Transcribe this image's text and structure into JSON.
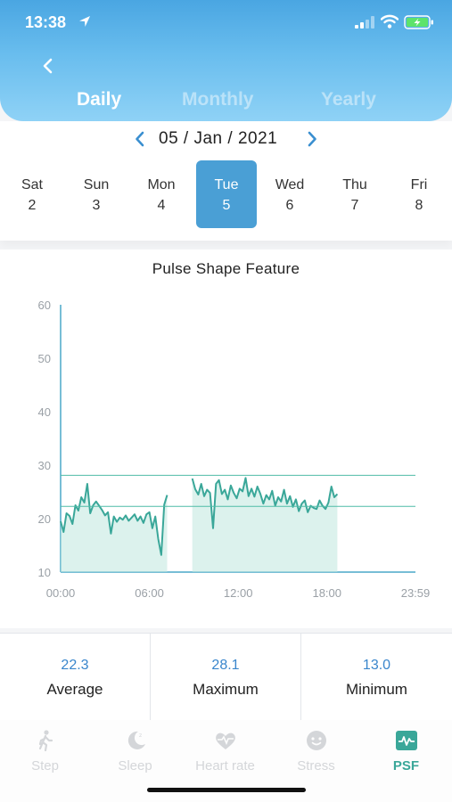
{
  "status_bar": {
    "time": "13:38"
  },
  "tabs": [
    {
      "label": "Daily",
      "active": true
    },
    {
      "label": "Monthly",
      "active": false
    },
    {
      "label": "Yearly",
      "active": false
    }
  ],
  "date_nav": {
    "date": "05 / Jan / 2021"
  },
  "days": [
    {
      "name": "Sat",
      "num": "2",
      "selected": false
    },
    {
      "name": "Sun",
      "num": "3",
      "selected": false
    },
    {
      "name": "Mon",
      "num": "4",
      "selected": false
    },
    {
      "name": "Tue",
      "num": "5",
      "selected": true
    },
    {
      "name": "Wed",
      "num": "6",
      "selected": false
    },
    {
      "name": "Thu",
      "num": "7",
      "selected": false
    },
    {
      "name": "Fri",
      "num": "8",
      "selected": false
    }
  ],
  "chart_data": {
    "type": "area",
    "title": "Pulse Shape Feature",
    "xlabel": "",
    "ylabel": "",
    "x_ticks": [
      "00:00",
      "06:00",
      "12:00",
      "18:00",
      "23:59"
    ],
    "xlim_hours": [
      0,
      23.98
    ],
    "y_ticks": [
      60,
      50,
      40,
      30,
      20,
      10
    ],
    "ylim": [
      10,
      60
    ],
    "reference_lines": [
      28.1,
      22.3
    ],
    "color": "#3aa799",
    "fill_color": "#bfe7df",
    "segments": [
      {
        "hours": [
          0.0,
          0.2,
          0.4,
          0.6,
          0.8,
          1.0,
          1.2,
          1.4,
          1.6,
          1.8,
          2.0,
          2.2,
          2.4,
          2.6,
          2.8,
          3.0,
          3.2,
          3.4,
          3.6,
          3.8,
          4.0,
          4.2,
          4.4,
          4.6,
          4.8,
          5.0,
          5.2,
          5.4,
          5.6,
          5.8,
          6.0,
          6.2,
          6.4,
          6.6,
          6.8,
          7.0,
          7.2
        ],
        "values": [
          19.5,
          17.5,
          21,
          20.5,
          19,
          22.5,
          21.5,
          24,
          23,
          26.5,
          21,
          22.5,
          23.2,
          22.4,
          21.6,
          20.6,
          21.2,
          17.2,
          20.4,
          19.4,
          20.2,
          19.8,
          20.6,
          19.6,
          20.2,
          20.8,
          19.6,
          20.4,
          19.2,
          20.8,
          21.2,
          18.2,
          20.4,
          16.2,
          13.2,
          22.6,
          24.4
        ]
      },
      {
        "hours": [
          8.9,
          9.1,
          9.3,
          9.5,
          9.7,
          9.9,
          10.1,
          10.3,
          10.5,
          10.7,
          10.9,
          11.1,
          11.3,
          11.5,
          11.7,
          11.9,
          12.1,
          12.3,
          12.5,
          12.7,
          12.9,
          13.1,
          13.3,
          13.5,
          13.7,
          13.9,
          14.1,
          14.3,
          14.5,
          14.7,
          14.9,
          15.1,
          15.3,
          15.5,
          15.7,
          15.9,
          16.1,
          16.3,
          16.5,
          16.7,
          16.9,
          17.1,
          17.3,
          17.5,
          17.7,
          17.9,
          18.1,
          18.3,
          18.5,
          18.7
        ],
        "values": [
          27.5,
          25.5,
          24.5,
          26.5,
          24.2,
          25.4,
          24.8,
          18.2,
          26.5,
          27.2,
          24.6,
          25.4,
          23.6,
          26.2,
          24.8,
          23.8,
          25.6,
          25.1,
          27.6,
          24.2,
          25.6,
          24.1,
          26.0,
          24.6,
          22.8,
          24.4,
          23.6,
          25.2,
          22.4,
          24.0,
          23.2,
          25.4,
          22.8,
          24.2,
          22.2,
          23.6,
          21.4,
          22.8,
          23.4,
          21.2,
          22.4,
          22.0,
          21.8,
          23.4,
          22.4,
          21.8,
          23.0,
          26.0,
          24.0,
          24.6
        ]
      }
    ]
  },
  "stats": [
    {
      "value": "22.3",
      "label": "Average"
    },
    {
      "value": "28.1",
      "label": "Maximum"
    },
    {
      "value": "13.0",
      "label": "Minimum"
    }
  ],
  "bottom_nav": [
    {
      "label": "Step",
      "icon": "walking-icon",
      "active": false
    },
    {
      "label": "Sleep",
      "icon": "moon-icon",
      "active": false
    },
    {
      "label": "Heart rate",
      "icon": "heart-pulse-icon",
      "active": false
    },
    {
      "label": "Stress",
      "icon": "face-icon",
      "active": false
    },
    {
      "label": "PSF",
      "icon": "waveform-icon",
      "active": true
    }
  ]
}
